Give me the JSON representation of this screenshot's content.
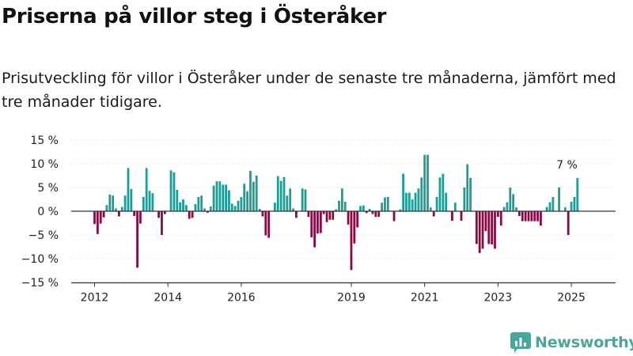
{
  "header": {
    "title": "Priserna på villor steg i Österåker",
    "subtitle": "Prisutveckling för villor i Österåker under de senaste tre månaderna, jämfört med tre månader tidigare."
  },
  "brand": {
    "name": "Newsworthy"
  },
  "colors": {
    "positive": "#1a9e96",
    "negative": "#8c0a44",
    "axis": "#333333",
    "text": "#222222"
  },
  "chart_data": {
    "type": "bar",
    "xlabel": "",
    "ylabel": "",
    "ylim": [
      -15,
      15
    ],
    "y_ticks": [
      {
        "value": 15,
        "label": "15 %"
      },
      {
        "value": 10,
        "label": "10 %"
      },
      {
        "value": 5,
        "label": "5 %"
      },
      {
        "value": 0,
        "label": "0 %"
      },
      {
        "value": -5,
        "label": "−5 %"
      },
      {
        "value": -10,
        "label": "−10 %"
      },
      {
        "value": -15,
        "label": "−15 %"
      }
    ],
    "x_ticks": [
      {
        "year": 2012,
        "label": "2012"
      },
      {
        "year": 2014,
        "label": "2014"
      },
      {
        "year": 2016,
        "label": "2016"
      },
      {
        "year": 2019,
        "label": "2019"
      },
      {
        "year": 2021,
        "label": "2021"
      },
      {
        "year": 2023,
        "label": "2023"
      },
      {
        "year": 2025,
        "label": "2025"
      }
    ],
    "series": [
      {
        "start": "2012-01",
        "values": [
          -2.7,
          -4.8,
          -2.6,
          -1.3,
          1.3,
          3.5,
          3.3,
          0.6,
          -1.1,
          0.9,
          3.3,
          9.1,
          4.7,
          -1.0,
          -11.9,
          -2.6,
          3.0,
          9.1,
          4.3,
          3.8,
          0.0,
          -1.4,
          -5.0,
          -0.6,
          0.0,
          8.6,
          8.2,
          4.5,
          1.9,
          2.5,
          1.3,
          -1.6,
          -1.4,
          1.5,
          3.0,
          3.3,
          0.6,
          -0.3,
          1.0,
          5.4,
          6.3,
          6.3,
          5.6,
          5.6,
          4.4,
          1.6,
          1.1,
          2.2,
          3.0,
          5.8,
          4.2,
          8.5,
          6.2,
          7.5,
          0.5,
          -1.1,
          -5.1,
          -5.6,
          0.0,
          1.8,
          7.4,
          6.4,
          7.2,
          3.3,
          4.8,
          0.6,
          -1.4,
          0.0,
          4.8,
          4.6,
          -1.2,
          -5.5,
          -7.6,
          -4.7,
          -4.6,
          -0.6,
          -2.3,
          -1.8,
          -1.8,
          0.4,
          2.2,
          4.8,
          2.0,
          -2.8,
          -12.4,
          -6.8,
          -3.4,
          1.1,
          1.2,
          -0.4,
          0.5,
          -0.6,
          -1.2,
          -1.2,
          1.8,
          2.9,
          3.0,
          0.0,
          -2.1,
          0.0,
          0.4,
          7.9,
          3.9,
          3.9,
          2.5,
          3.9,
          4.8,
          7.1,
          11.9,
          11.9,
          0.8,
          -1.1,
          3.0,
          7.1,
          7.9,
          3.9,
          0.0,
          -2.0,
          1.8,
          0.0,
          -2.0,
          5.0,
          9.9,
          7.0,
          0.0,
          -6.9,
          -8.8,
          -7.9,
          -4.2,
          -6.9,
          -7.0,
          -7.9,
          -1.2,
          -3.0,
          0.9,
          1.9,
          5.0,
          3.6,
          0.8,
          -1.0,
          -2.1,
          -2.1,
          -2.1,
          -2.1,
          -2.1,
          -2.1,
          -3.0,
          0.0,
          0.9,
          1.9,
          3.0,
          0.0,
          5.0,
          0.0,
          0.8,
          -5.0,
          2.0,
          3.0,
          7.0
        ]
      }
    ],
    "annotations": [
      {
        "text": "7 %",
        "target": "last"
      }
    ]
  }
}
